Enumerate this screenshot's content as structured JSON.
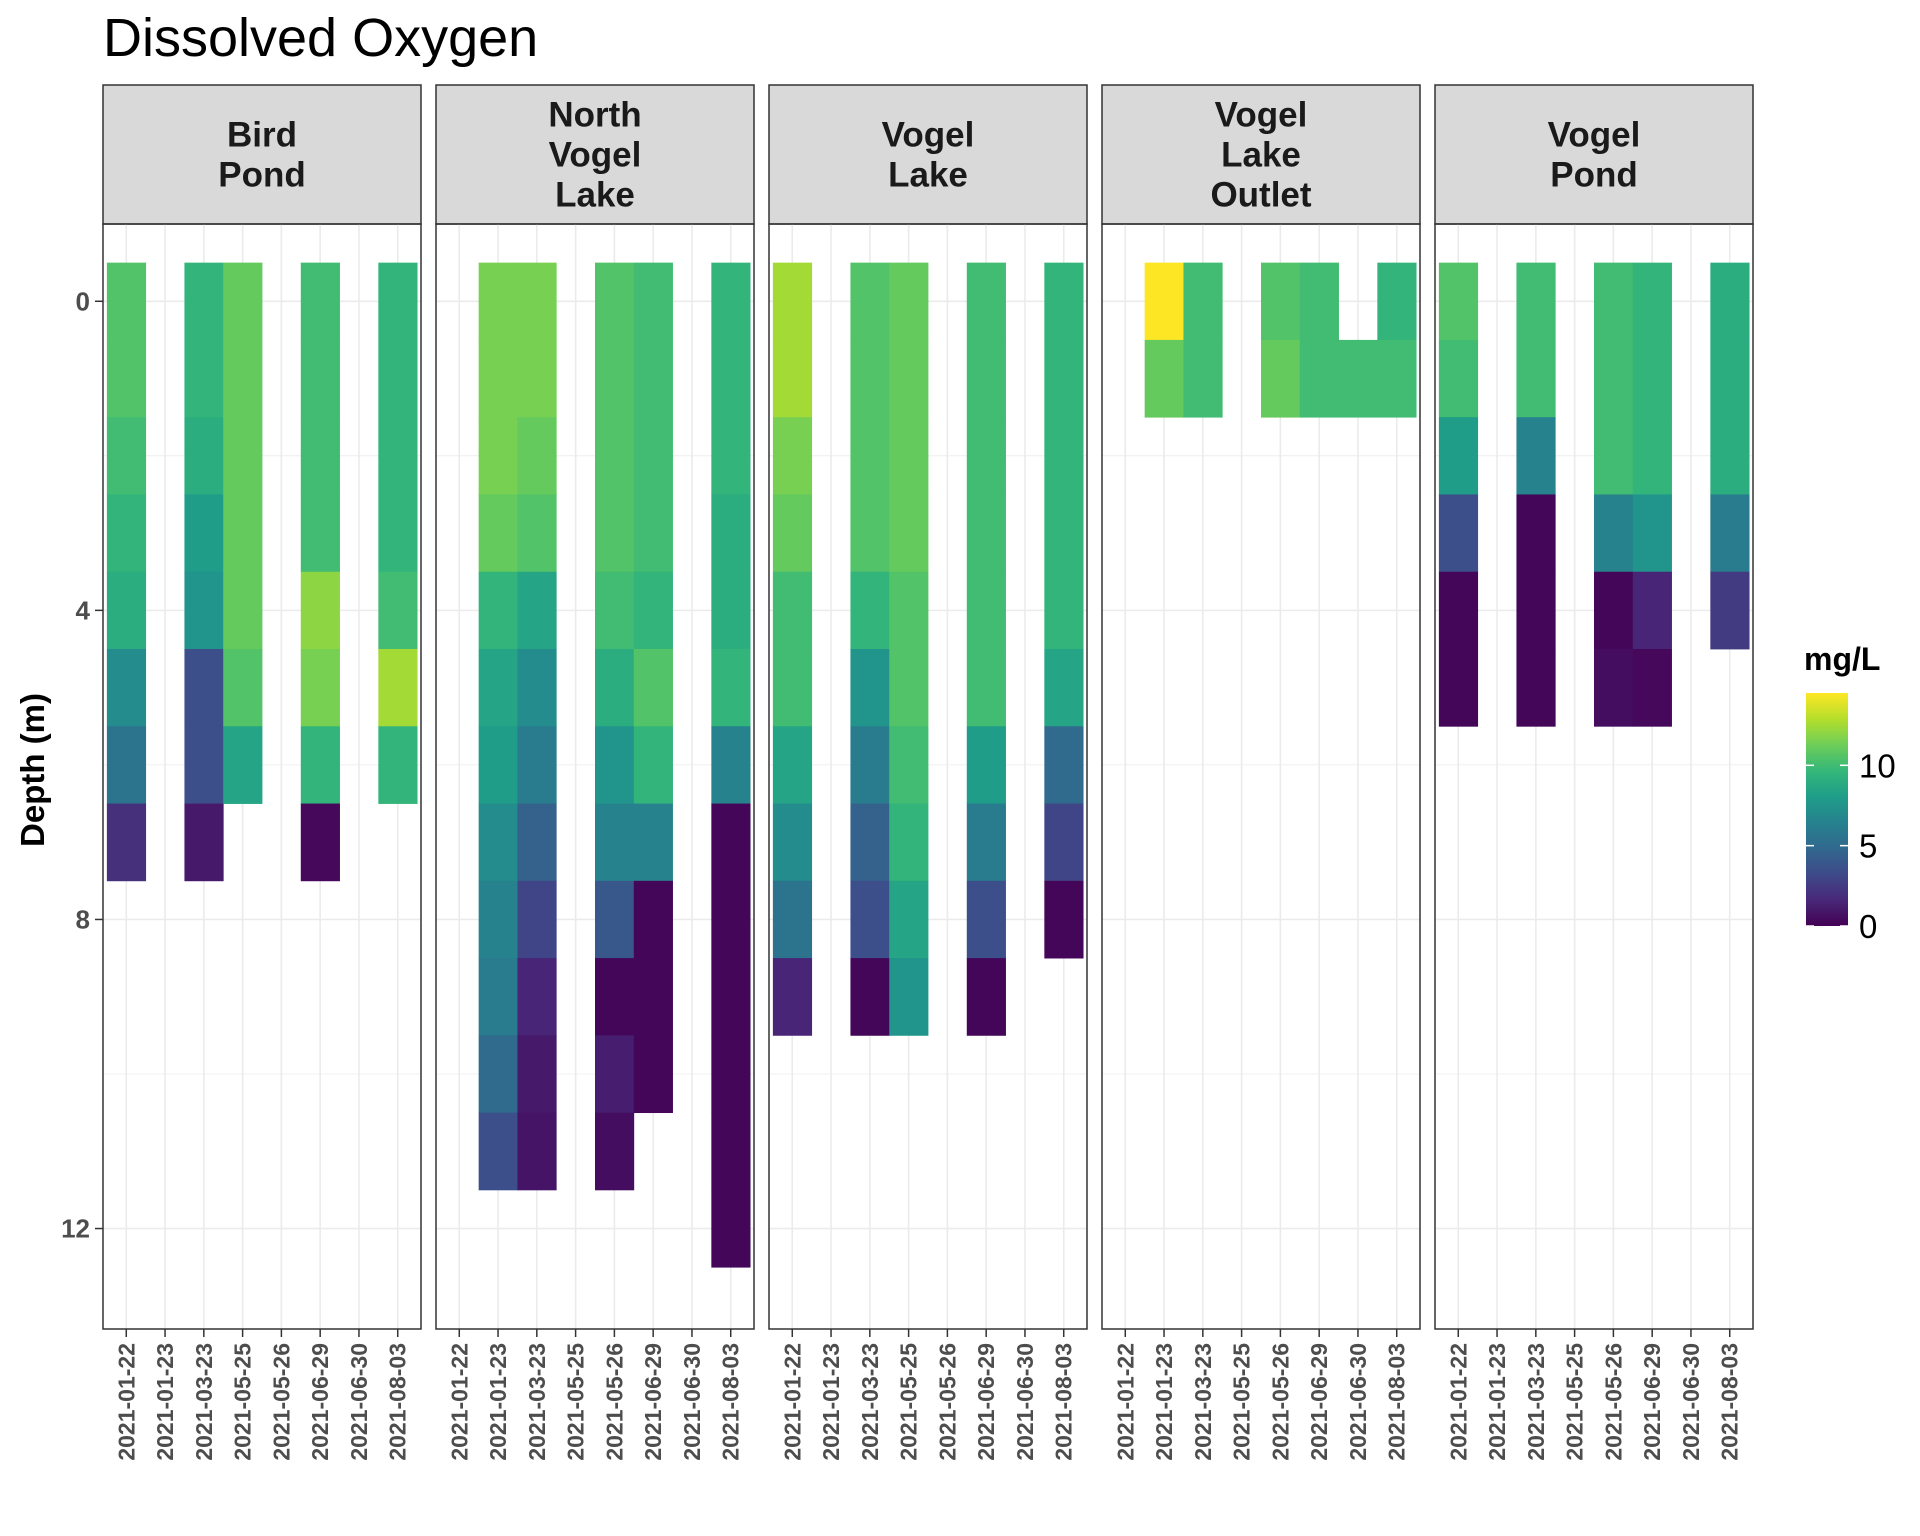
{
  "chart_data": {
    "type": "heatmap",
    "title": "Dissolved Oxygen",
    "ylabel": "Depth (m)",
    "xlabel": "",
    "y_axis_reversed": true,
    "y_ticks": [
      0,
      4,
      8,
      12
    ],
    "ylim": [
      -1,
      13.3
    ],
    "grid": true,
    "facet_layout": "5 panels in one row, labels on top",
    "dates": [
      "2021-01-22",
      "2021-01-23",
      "2021-03-23",
      "2021-05-25",
      "2021-05-26",
      "2021-06-29",
      "2021-06-30",
      "2021-08-03"
    ],
    "legend": {
      "title": "mg/L",
      "position": "right",
      "ticks": [
        0,
        5,
        10
      ],
      "range": [
        0,
        14.5
      ],
      "palette": "viridis",
      "colors": [
        "#440154",
        "#482878",
        "#3e4a89",
        "#31688e",
        "#26828e",
        "#1f9e89",
        "#35b779",
        "#6ece58",
        "#b5de2b",
        "#fde725"
      ]
    },
    "panels": [
      {
        "name": "Bird\nPond",
        "columns": [
          {
            "date": "2021-01-22",
            "values": [
              10.5,
              10.5,
              10.0,
              9.5,
              9.0,
              7.0,
              5.5,
              2.0
            ]
          },
          {
            "date": "2021-01-23",
            "values": []
          },
          {
            "date": "2021-03-23",
            "values": [
              9.5,
              9.5,
              9.0,
              8.0,
              7.5,
              3.5,
              3.5,
              1.0
            ]
          },
          {
            "date": "2021-05-25",
            "values": [
              11.0,
              11.0,
              11.0,
              11.0,
              11.0,
              10.5,
              8.5
            ]
          },
          {
            "date": "2021-05-26",
            "values": []
          },
          {
            "date": "2021-06-29",
            "values": [
              10.0,
              10.0,
              10.0,
              10.0,
              12.0,
              11.5,
              9.5,
              0.3
            ]
          },
          {
            "date": "2021-06-30",
            "values": []
          },
          {
            "date": "2021-08-03",
            "values": [
              9.5,
              9.5,
              9.5,
              9.5,
              10.0,
              12.5,
              9.5
            ]
          }
        ]
      },
      {
        "name": "North\nVogel\nLake",
        "columns": [
          {
            "date": "2021-01-22",
            "values": []
          },
          {
            "date": "2021-01-23",
            "values": [
              11.5,
              11.5,
              11.5,
              11.0,
              9.5,
              8.5,
              8.0,
              7.0,
              6.5,
              6.0,
              5.0,
              3.5
            ]
          },
          {
            "date": "2021-03-23",
            "values": [
              11.5,
              11.5,
              11.0,
              10.5,
              8.5,
              7.0,
              6.0,
              4.5,
              3.0,
              1.5,
              1.0,
              0.8
            ]
          },
          {
            "date": "2021-05-25",
            "values": []
          },
          {
            "date": "2021-05-26",
            "values": [
              10.5,
              10.5,
              10.5,
              10.5,
              10.0,
              9.0,
              7.5,
              6.5,
              4.0,
              0.2,
              1.2,
              0.5
            ]
          },
          {
            "date": "2021-06-29",
            "values": [
              10.0,
              10.0,
              10.0,
              10.0,
              9.5,
              10.5,
              9.5,
              6.5,
              0.2,
              0.2,
              0.2
            ]
          },
          {
            "date": "2021-06-30",
            "values": []
          },
          {
            "date": "2021-08-03",
            "values": [
              9.5,
              9.5,
              9.5,
              9.0,
              9.0,
              9.5,
              6.5,
              0.2,
              0.2,
              0.2,
              0.2,
              0.2,
              0.2
            ]
          }
        ]
      },
      {
        "name": "Vogel\nLake",
        "columns": [
          {
            "date": "2021-01-22",
            "values": [
              12.5,
              12.5,
              11.5,
              11.0,
              10.0,
              10.0,
              8.5,
              7.0,
              5.5,
              1.5
            ]
          },
          {
            "date": "2021-01-23",
            "values": []
          },
          {
            "date": "2021-03-23",
            "values": [
              10.5,
              10.5,
              10.5,
              10.5,
              9.5,
              7.5,
              6.0,
              4.5,
              3.5,
              0.2
            ]
          },
          {
            "date": "2021-05-25",
            "values": [
              11.0,
              11.0,
              11.0,
              11.0,
              10.5,
              10.5,
              10.0,
              9.5,
              8.5,
              7.5
            ]
          },
          {
            "date": "2021-05-26",
            "values": []
          },
          {
            "date": "2021-06-29",
            "values": [
              10.0,
              10.0,
              10.0,
              10.0,
              10.0,
              10.0,
              8.0,
              6.0,
              3.5,
              0.2
            ]
          },
          {
            "date": "2021-06-30",
            "values": []
          },
          {
            "date": "2021-08-03",
            "values": [
              9.5,
              9.5,
              9.5,
              9.5,
              9.5,
              8.5,
              5.0,
              3.0,
              0.2
            ]
          }
        ]
      },
      {
        "name": "Vogel\nLake\nOutlet",
        "columns": [
          {
            "date": "2021-01-22",
            "values": []
          },
          {
            "date": "2021-01-23",
            "values": [
              14.5,
              11.0
            ]
          },
          {
            "date": "2021-03-23",
            "values": [
              10.0,
              10.0
            ]
          },
          {
            "date": "2021-05-25",
            "values": []
          },
          {
            "date": "2021-05-26",
            "values": [
              10.5,
              11.0
            ]
          },
          {
            "date": "2021-06-29",
            "values": [
              10.0,
              10.0
            ]
          },
          {
            "date": "2021-06-30",
            "values": [
              null,
              10.0
            ]
          },
          {
            "date": "2021-08-03",
            "values": [
              9.5,
              10.0
            ]
          }
        ]
      },
      {
        "name": "Vogel\nPond",
        "columns": [
          {
            "date": "2021-01-22",
            "values": [
              10.5,
              10.0,
              8.0,
              3.5,
              0.2,
              0.2
            ]
          },
          {
            "date": "2021-01-23",
            "values": []
          },
          {
            "date": "2021-03-23",
            "values": [
              10.0,
              10.0,
              6.5,
              0.2,
              0.2,
              0.2
            ]
          },
          {
            "date": "2021-05-25",
            "values": []
          },
          {
            "date": "2021-05-26",
            "values": [
              10.0,
              10.0,
              10.0,
              6.5,
              0.2,
              0.5
            ]
          },
          {
            "date": "2021-06-29",
            "values": [
              9.5,
              9.5,
              9.5,
              7.5,
              1.5,
              0.3
            ]
          },
          {
            "date": "2021-06-30",
            "values": []
          },
          {
            "date": "2021-08-03",
            "values": [
              9.0,
              9.0,
              9.0,
              6.0,
              2.5
            ]
          }
        ]
      }
    ]
  }
}
